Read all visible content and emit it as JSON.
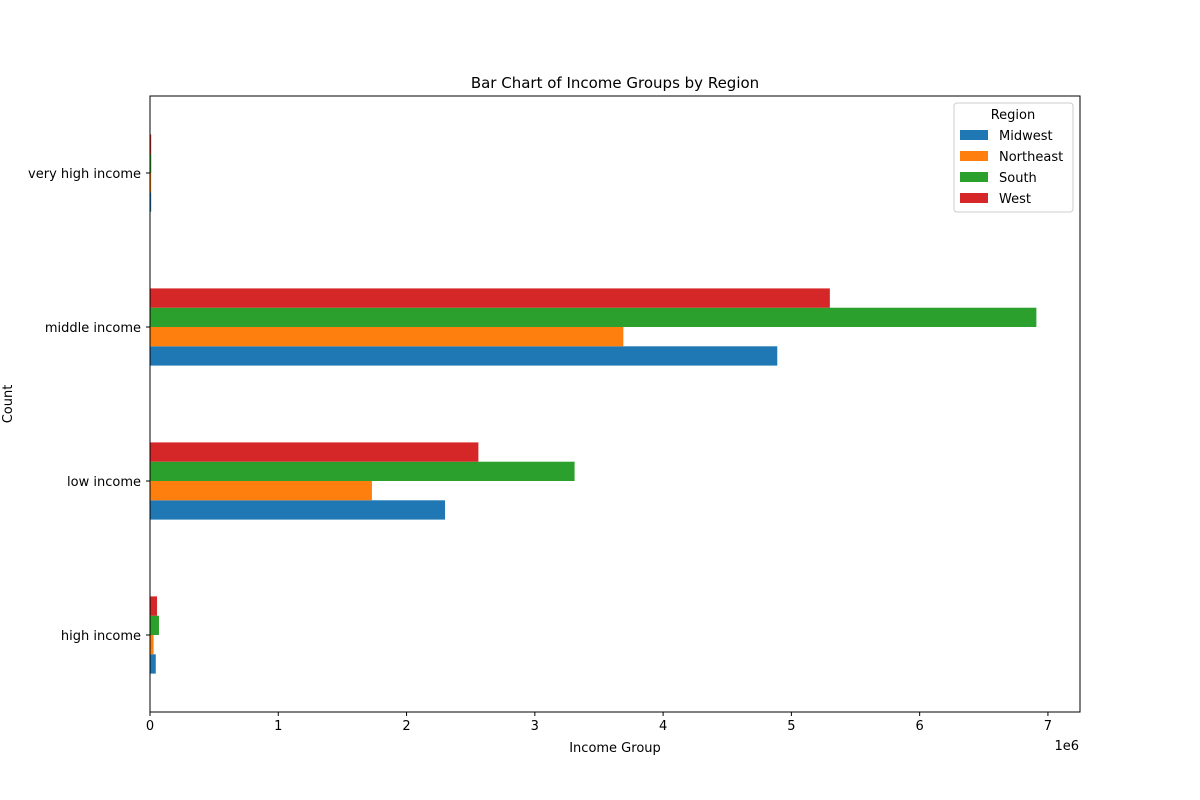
{
  "chart_data": {
    "type": "bar",
    "orientation": "horizontal",
    "title": "Bar Chart of Income Groups by Region",
    "xlabel": "Income Group",
    "ylabel": "Count",
    "x_offset_label": "1e6",
    "xlim": [
      0,
      7250000
    ],
    "x_ticks": [
      0,
      1000000,
      2000000,
      3000000,
      4000000,
      5000000,
      6000000,
      7000000
    ],
    "x_tick_labels": [
      "0",
      "1",
      "2",
      "3",
      "4",
      "5",
      "6",
      "7"
    ],
    "categories": [
      "high income",
      "low income",
      "middle income",
      "very high income"
    ],
    "grid": false,
    "legend": {
      "title": "Region",
      "placement": "top-right"
    },
    "series": [
      {
        "name": "Midwest",
        "color": "#1f77b4",
        "values": [
          45000,
          2300000,
          4890000,
          8000
        ]
      },
      {
        "name": "Northeast",
        "color": "#ff7f0e",
        "values": [
          28000,
          1730000,
          3690000,
          2000
        ]
      },
      {
        "name": "South",
        "color": "#2ca02c",
        "values": [
          70000,
          3310000,
          6910000,
          10000
        ]
      },
      {
        "name": "West",
        "color": "#d62728",
        "values": [
          55000,
          2560000,
          5300000,
          3000
        ]
      }
    ]
  }
}
